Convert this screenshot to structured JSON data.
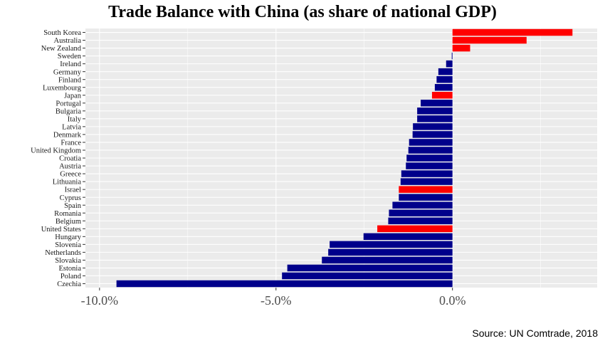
{
  "chart_data": {
    "type": "bar",
    "orientation": "horizontal",
    "title": "Trade Balance with China (as share of national GDP)",
    "source": "Source: UN Comtrade, 2018",
    "xlabel": "",
    "ylabel": "",
    "xlim": [
      -10.4,
      4.1
    ],
    "grid": true,
    "xticks": [
      {
        "value": -10,
        "label": "-10.0%"
      },
      {
        "value": -5,
        "label": "-5.0%"
      },
      {
        "value": 0,
        "label": "0.0%"
      }
    ],
    "colors": {
      "highlight": "#ff0000",
      "default": "#00008b",
      "panel": "#ebebeb",
      "grid": "#ffffff"
    },
    "categories": [
      "South Korea",
      "Australia",
      "New Zealand",
      "Sweden",
      "Ireland",
      "Germany",
      "Finland",
      "Luxembourg",
      "Japan",
      "Portugal",
      "Bulgaria",
      "Italy",
      "Latvia",
      "Denmark",
      "France",
      "United Kingdom",
      "Croatia",
      "Austria",
      "Greece",
      "Lithuania",
      "Israel",
      "Cyprus",
      "Spain",
      "Romania",
      "Belgium",
      "United States",
      "Hungary",
      "Slovenia",
      "Netherlands",
      "Slovakia",
      "Estonia",
      "Poland",
      "Czechia"
    ],
    "values": [
      3.4,
      2.1,
      0.5,
      -0.02,
      -0.18,
      -0.4,
      -0.45,
      -0.5,
      -0.58,
      -0.9,
      -1.0,
      -1.0,
      -1.12,
      -1.13,
      -1.23,
      -1.25,
      -1.3,
      -1.32,
      -1.45,
      -1.47,
      -1.52,
      -1.52,
      -1.7,
      -1.8,
      -1.82,
      -2.13,
      -2.52,
      -3.48,
      -3.52,
      -3.7,
      -4.68,
      -4.83,
      -9.52
    ],
    "highlighted": [
      "South Korea",
      "Australia",
      "New Zealand",
      "Japan",
      "Israel",
      "United States"
    ]
  }
}
